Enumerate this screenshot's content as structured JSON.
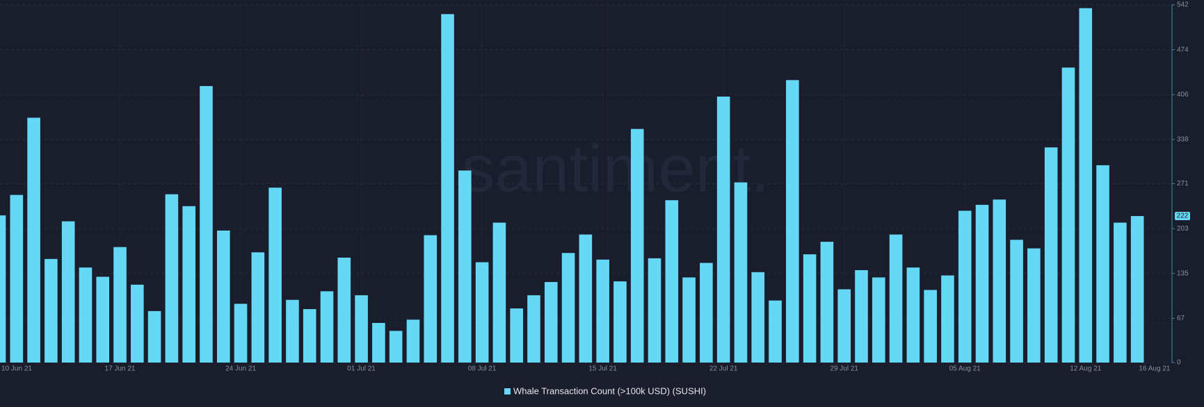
{
  "chart_data": {
    "type": "bar",
    "watermark": "santiment.",
    "categories": [
      "10 Jun 21",
      null,
      null,
      null,
      null,
      null,
      null,
      "17 Jun 21",
      null,
      null,
      null,
      null,
      null,
      null,
      "24 Jun 21",
      null,
      null,
      null,
      null,
      null,
      null,
      "01 Jul 21",
      null,
      null,
      null,
      null,
      null,
      null,
      "08 Jul 21",
      null,
      null,
      null,
      null,
      null,
      null,
      "15 Jul 21",
      null,
      null,
      null,
      null,
      null,
      null,
      "22 Jul 21",
      null,
      null,
      null,
      null,
      null,
      null,
      "29 Jul 21",
      null,
      null,
      null,
      null,
      null,
      null,
      "05 Aug 21",
      null,
      null,
      null,
      null,
      null,
      null,
      "12 Aug 21",
      null,
      null,
      null
    ],
    "x_end_label": "16 Aug 21",
    "series": [
      {
        "name": "Whale Transaction Count (>100k USD) (SUSHI)",
        "color": "#64d8f5",
        "values": [
          223,
          254,
          371,
          157,
          214,
          144,
          130,
          175,
          118,
          78,
          255,
          237,
          419,
          200,
          89,
          167,
          265,
          95,
          81,
          108,
          159,
          102,
          60,
          48,
          65,
          193,
          528,
          291,
          152,
          212,
          82,
          102,
          122,
          166,
          194,
          156,
          123,
          354,
          158,
          246,
          129,
          151,
          403,
          273,
          137,
          94,
          428,
          164,
          183,
          111,
          140,
          129,
          194,
          144,
          110,
          132,
          230,
          239,
          247,
          186,
          173,
          326,
          447,
          537,
          299,
          212,
          222
        ]
      }
    ],
    "ylim": [
      0,
      542
    ],
    "yticks": [
      0,
      67,
      135,
      203,
      271,
      338,
      406,
      474,
      542
    ],
    "grid": true
  }
}
